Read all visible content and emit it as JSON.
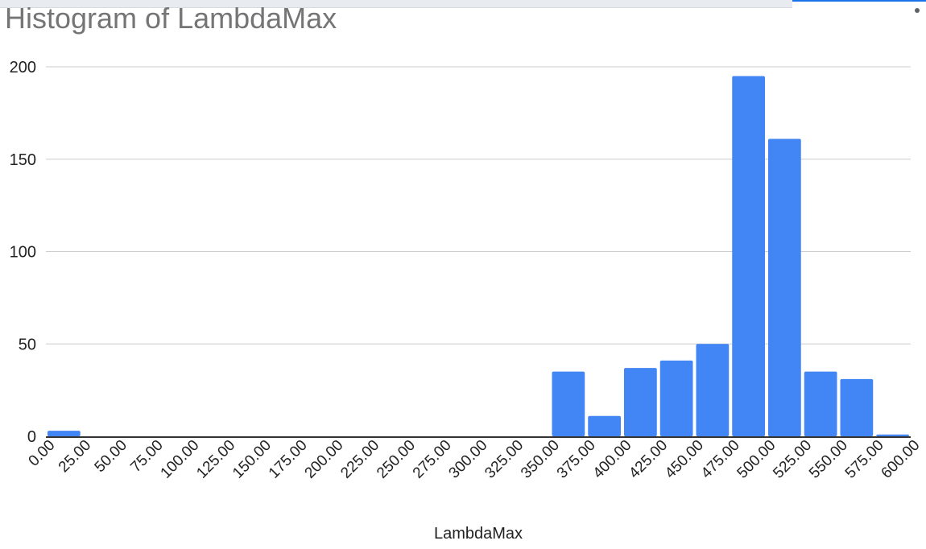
{
  "window": {
    "menu_icon": "more-vert-icon"
  },
  "chart_data": {
    "type": "bar",
    "title": "Histogram of LambdaMax",
    "xlabel": "LambdaMax",
    "ylabel": "",
    "ylim": [
      0,
      200
    ],
    "y_ticks": [
      "0",
      "50",
      "100",
      "150",
      "200"
    ],
    "x_ticks": [
      "0.00",
      "25.00",
      "50.00",
      "75.00",
      "100.00",
      "125.00",
      "150.00",
      "175.00",
      "200.00",
      "225.00",
      "250.00",
      "275.00",
      "300.00",
      "325.00",
      "350.00",
      "375.00",
      "400.00",
      "425.00",
      "450.00",
      "475.00",
      "500.00",
      "525.00",
      "550.00",
      "575.00",
      "600.00"
    ],
    "bins": [
      {
        "start": 0,
        "end": 25,
        "count": 3
      },
      {
        "start": 25,
        "end": 50,
        "count": 0
      },
      {
        "start": 50,
        "end": 75,
        "count": 0
      },
      {
        "start": 75,
        "end": 100,
        "count": 0
      },
      {
        "start": 100,
        "end": 125,
        "count": 0
      },
      {
        "start": 125,
        "end": 150,
        "count": 0
      },
      {
        "start": 150,
        "end": 175,
        "count": 0
      },
      {
        "start": 175,
        "end": 200,
        "count": 0
      },
      {
        "start": 200,
        "end": 225,
        "count": 0
      },
      {
        "start": 225,
        "end": 250,
        "count": 0
      },
      {
        "start": 250,
        "end": 275,
        "count": 0
      },
      {
        "start": 275,
        "end": 300,
        "count": 0
      },
      {
        "start": 300,
        "end": 325,
        "count": 0
      },
      {
        "start": 325,
        "end": 350,
        "count": 0
      },
      {
        "start": 350,
        "end": 375,
        "count": 35
      },
      {
        "start": 375,
        "end": 400,
        "count": 11
      },
      {
        "start": 400,
        "end": 425,
        "count": 37
      },
      {
        "start": 425,
        "end": 450,
        "count": 41
      },
      {
        "start": 450,
        "end": 475,
        "count": 50
      },
      {
        "start": 475,
        "end": 500,
        "count": 195
      },
      {
        "start": 500,
        "end": 525,
        "count": 161
      },
      {
        "start": 525,
        "end": 550,
        "count": 35
      },
      {
        "start": 550,
        "end": 575,
        "count": 31
      },
      {
        "start": 575,
        "end": 600,
        "count": 1
      }
    ],
    "bar_color": "#4285f4",
    "gridline_color": "#cccccc",
    "axis_color": "#333333",
    "grid": true,
    "legend": "none"
  }
}
